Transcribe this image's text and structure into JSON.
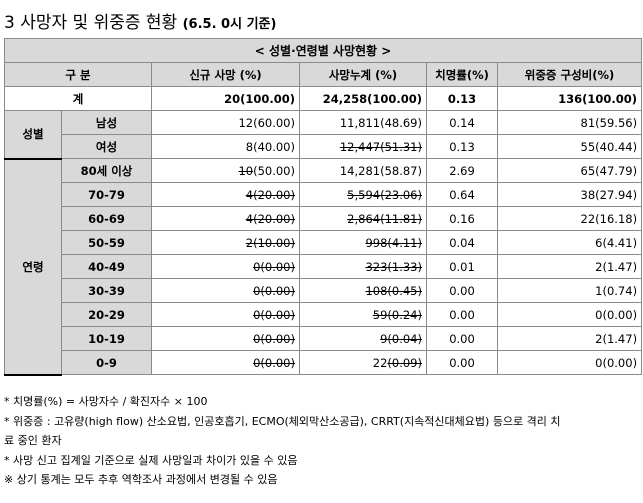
{
  "title": {
    "main": "3  사망자 및 위중증 현황",
    "sub": "(6.5. 0시 기준)"
  },
  "table": {
    "caption": "< 성별·연령별 사망현황 >",
    "headers": {
      "category": "구 분",
      "new_deaths": "신규 사망      (%)",
      "cumulative": "사망누계      (%)",
      "fatality": "치명률(%)",
      "severe": "위중증    구성비(%)"
    },
    "total": {
      "label": "계",
      "new": "20(100.00)",
      "cum": "24,258(100.00)",
      "rate": "0.13",
      "severe": "136(100.00)"
    },
    "sex_group": "성별",
    "sex_rows": [
      {
        "label": "남성",
        "new_num": "12",
        "new_pct": "(60.00)",
        "new_strike": false,
        "cum_num": "11,811",
        "cum_pct": "(48.69)",
        "cum_strike": false,
        "rate": "0.14",
        "severe": "81(59.56)"
      },
      {
        "label": "여성",
        "new_num": "8",
        "new_pct": "(40.00)",
        "new_strike": false,
        "cum_num": "12,447",
        "cum_pct": "(51.31)",
        "cum_strike": true,
        "rate": "0.13",
        "severe": "55(40.44)"
      }
    ],
    "age_group": "연령",
    "age_rows": [
      {
        "label": "80세 이상",
        "new_num": "10",
        "new_pct": "(50.00)",
        "new_strike": "num",
        "cum_num": "14,281",
        "cum_pct": "(58.87)",
        "cum_strike": false,
        "rate": "2.69",
        "severe": "65(47.79)"
      },
      {
        "label": "70-79",
        "new_num": "4",
        "new_pct": "(20.00)",
        "new_strike": true,
        "cum_num": "5,594",
        "cum_pct": "(23.06)",
        "cum_strike": true,
        "rate": "0.64",
        "severe": "38(27.94)"
      },
      {
        "label": "60-69",
        "new_num": "4",
        "new_pct": "(20.00)",
        "new_strike": true,
        "cum_num": "2,864",
        "cum_pct": "(11.81)",
        "cum_strike": true,
        "rate": "0.16",
        "severe": "22(16.18)"
      },
      {
        "label": "50-59",
        "new_num": "2",
        "new_pct": "(10.00)",
        "new_strike": true,
        "cum_num": "998",
        "cum_pct": "(4.11)",
        "cum_strike": true,
        "rate": "0.04",
        "severe": "6(4.41)"
      },
      {
        "label": "40-49",
        "new_num": "0",
        "new_pct": "(0.00)",
        "new_strike": true,
        "cum_num": "323",
        "cum_pct": "(1.33)",
        "cum_strike": true,
        "rate": "0.01",
        "severe": "2(1.47)"
      },
      {
        "label": "30-39",
        "new_num": "0",
        "new_pct": "(0.00)",
        "new_strike": true,
        "cum_num": "108",
        "cum_pct": "(0.45)",
        "cum_strike": true,
        "rate": "0.00",
        "severe": "1(0.74)"
      },
      {
        "label": "20-29",
        "new_num": "0",
        "new_pct": "(0.00)",
        "new_strike": true,
        "cum_num": "59",
        "cum_pct": "(0.24)",
        "cum_strike": true,
        "rate": "0.00",
        "severe": "0(0.00)"
      },
      {
        "label": "10-19",
        "new_num": "0",
        "new_pct": "(0.00)",
        "new_strike": true,
        "cum_num": "9",
        "cum_pct": "(0.04)",
        "cum_strike": true,
        "rate": "0.00",
        "severe": "2(1.47)"
      },
      {
        "label": "0-9",
        "new_num": "0",
        "new_pct": "(0.00)",
        "new_strike": true,
        "cum_num": "22",
        "cum_pct": "(0.09)",
        "cum_strike": "pct",
        "rate": "0.00",
        "severe": "0(0.00)"
      }
    ]
  },
  "notes": [
    "* 치명률(%) = 사망자수 / 확진자수 × 100",
    "* 위중증 : 고유량(high flow) 산소요법, 인공호흡기, ECMO(체외막산소공급), CRRT(지속적신대체요법) 등으로 격리 치",
    "료 중인 환자",
    "* 사망 신고 집계일 기준으로 실제 사망일과 차이가 있을 수 있음",
    "※ 상기 통계는 모두 추후 역학조사 과정에서 변경될 수 있음"
  ]
}
